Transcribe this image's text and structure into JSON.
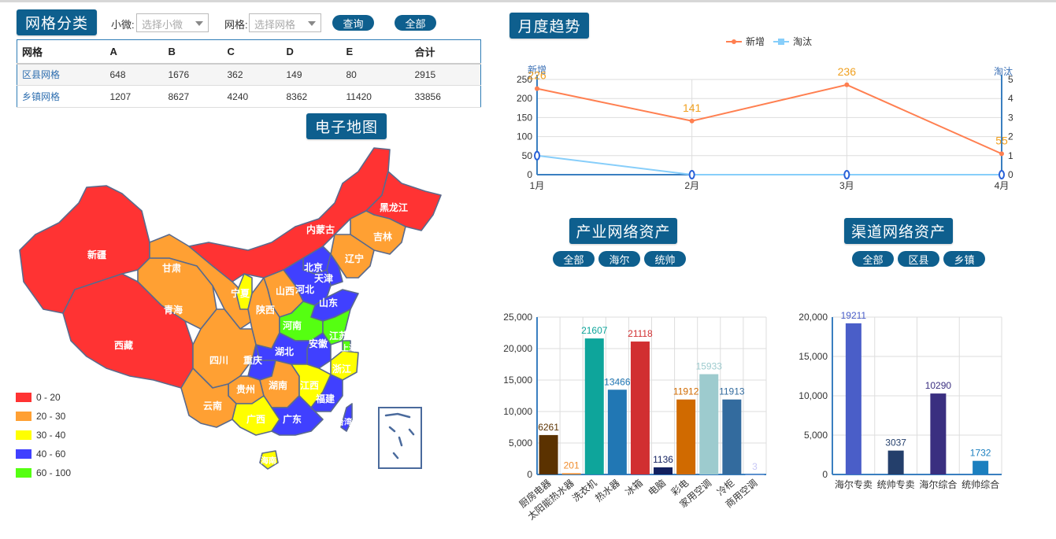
{
  "grid_panel": {
    "title": "网格分类",
    "filter1_label": "小微:",
    "filter1_placeholder": "选择小微",
    "filter2_label": "网格:",
    "filter2_placeholder": "选择网格",
    "query_button": "查询",
    "all_button": "全部",
    "columns": [
      "网格",
      "A",
      "B",
      "C",
      "D",
      "E",
      "合计"
    ],
    "rows": [
      [
        "区县网格",
        "648",
        "1676",
        "362",
        "149",
        "80",
        "2915"
      ],
      [
        "乡镇网格",
        "1207",
        "8627",
        "4240",
        "8362",
        "11420",
        "33856"
      ]
    ]
  },
  "map_panel": {
    "title": "电子地图",
    "legend": [
      {
        "label": "0 - 20",
        "color": "#ff3333"
      },
      {
        "label": "20 - 30",
        "color": "#ffa033"
      },
      {
        "label": "30 - 40",
        "color": "#ffff00"
      },
      {
        "label": "40 - 60",
        "color": "#4040ff"
      },
      {
        "label": "60 - 100",
        "color": "#55ff11"
      }
    ],
    "provinces": [
      "新疆",
      "西藏",
      "青海",
      "甘肃",
      "内蒙古",
      "黑龙江",
      "吉林",
      "辽宁",
      "北京",
      "天津",
      "河北",
      "宁夏",
      "山西",
      "山东",
      "陕西",
      "河南",
      "江苏",
      "安徽",
      "湖北",
      "上海",
      "四川",
      "重庆",
      "浙江",
      "贵州",
      "湖南",
      "江西",
      "福建",
      "云南",
      "广西",
      "广东",
      "台湾",
      "海南"
    ]
  },
  "trend_panel": {
    "title": "月度趋势",
    "legend_new": "新增",
    "legend_out": "淘汰",
    "left_axis_name": "新增",
    "right_axis_name": "淘汰"
  },
  "industry_panel": {
    "title": "产业网络资产",
    "buttons": [
      "全部",
      "海尔",
      "统帅"
    ]
  },
  "channel_panel": {
    "title": "渠道网络资产",
    "buttons": [
      "全部",
      "区县",
      "乡镇"
    ]
  },
  "chart_data": [
    {
      "type": "line",
      "title": "月度趋势",
      "x": [
        "1月",
        "2月",
        "3月",
        "4月"
      ],
      "series": [
        {
          "name": "新增",
          "axis": "left",
          "color": "#ff7f50",
          "values": [
            226,
            141,
            236,
            55
          ]
        },
        {
          "name": "淘汰",
          "axis": "right",
          "color": "#87cefa",
          "values": [
            1,
            0,
            0,
            0
          ]
        }
      ],
      "ylim_left": [
        0,
        250
      ],
      "left_ticks": [
        0,
        50,
        100,
        150,
        200,
        250
      ],
      "ylim_right": [
        0,
        5
      ],
      "right_ticks": [
        0,
        1,
        2,
        3,
        4,
        5
      ],
      "legend": "top-center",
      "grid": true
    },
    {
      "type": "bar",
      "title": "产业网络资产",
      "categories": [
        "厨房电器",
        "太阳能热水器",
        "洗衣机",
        "热水器",
        "冰箱",
        "电脑",
        "彩电",
        "家用空调",
        "冷柜",
        "商用空调"
      ],
      "values": [
        6261,
        201,
        21607,
        13466,
        21118,
        1136,
        11912,
        15933,
        11913,
        3
      ],
      "colors": [
        "#5b3200",
        "#f08d2e",
        "#0ea59b",
        "#2177b4",
        "#d12f31",
        "#12205f",
        "#d06a00",
        "#9dcbce",
        "#336b9e",
        "#c6c6f5"
      ],
      "ylim": [
        0,
        25000
      ],
      "ticks": [
        0,
        5000,
        10000,
        15000,
        20000,
        25000
      ],
      "grid": true
    },
    {
      "type": "bar",
      "title": "渠道网络资产",
      "categories": [
        "海尔专卖",
        "统帅专卖",
        "海尔综合",
        "统帅综合"
      ],
      "values": [
        19211,
        3037,
        10290,
        1732
      ],
      "colors": [
        "#4a5ec8",
        "#243f6b",
        "#3a2f80",
        "#1b7fbf"
      ],
      "ylim": [
        0,
        20000
      ],
      "ticks": [
        0,
        5000,
        10000,
        15000,
        20000
      ],
      "grid": true
    }
  ]
}
